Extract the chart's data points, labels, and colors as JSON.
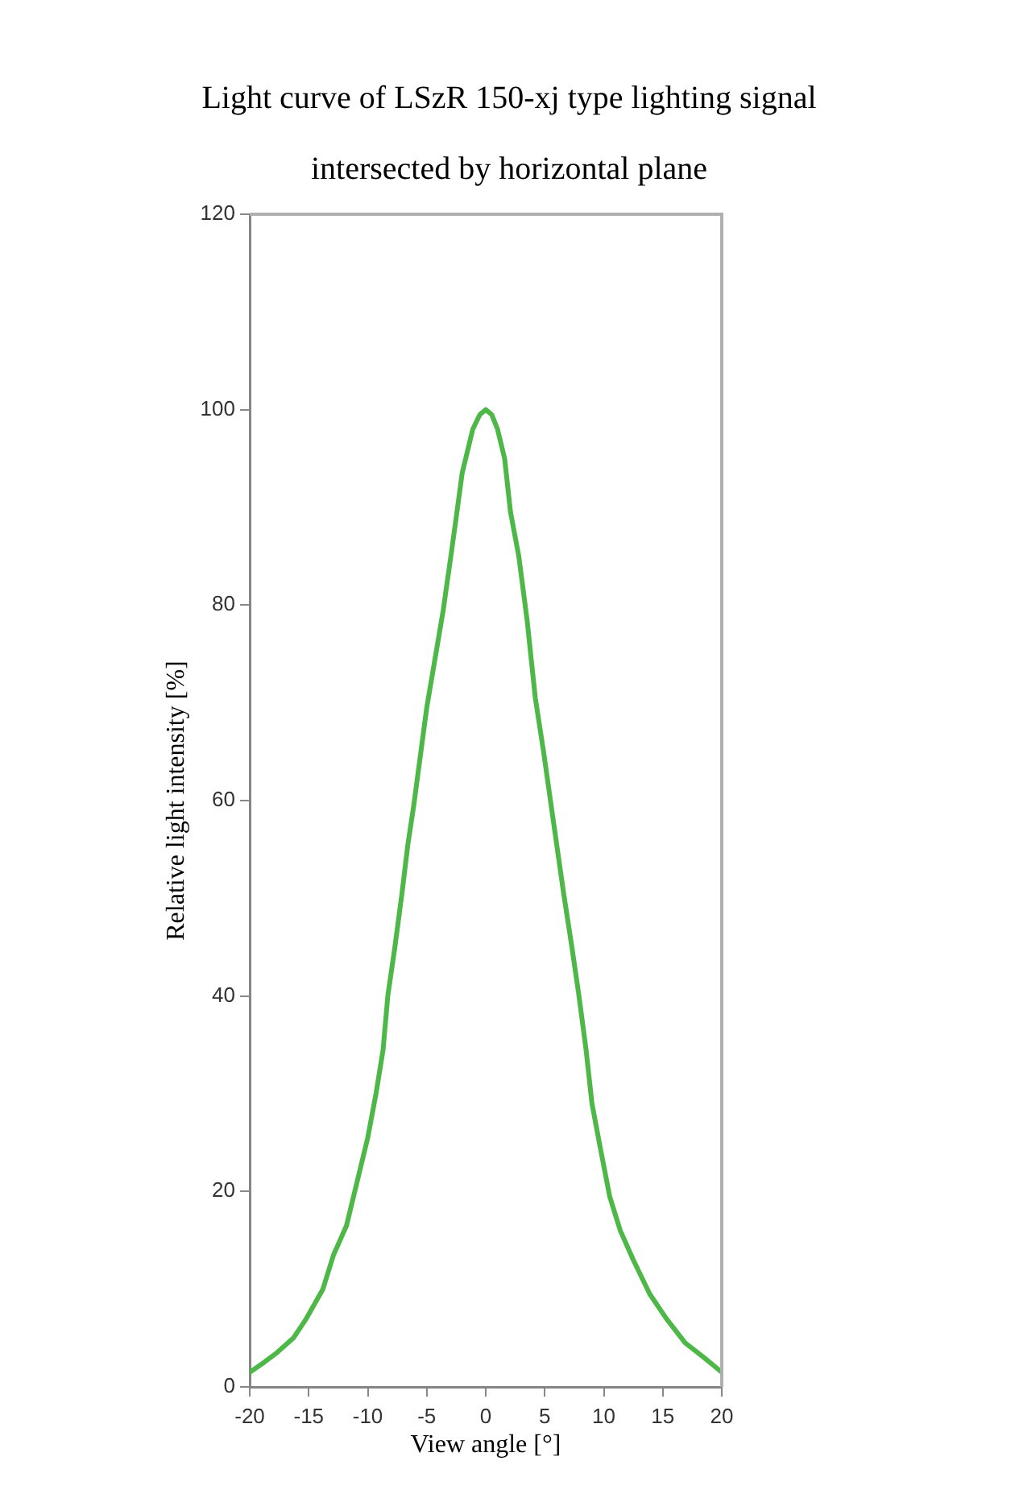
{
  "chart_data": {
    "type": "line",
    "title": "Light curve of LSzR 150-xj type lighting signal intersected by horizontal plane",
    "xlabel": "View angle [°]",
    "ylabel": "Relative light intensity [%]",
    "x": [
      -20,
      -18.8,
      -17.7,
      -16.3,
      -15.2,
      -13.8,
      -12.9,
      -11.8,
      -10.9,
      -10,
      -9.3,
      -8.7,
      -8.3,
      -7.7,
      -7.1,
      -6.6,
      -6.1,
      -5,
      -3.6,
      -2.9,
      -2.5,
      -2,
      -1.1,
      -0.5,
      0,
      0.5,
      1,
      1.6,
      2.1,
      2.8,
      3.5,
      4.2,
      4.9,
      5.6,
      6.6,
      7.3,
      7.9,
      8.5,
      9,
      9.7,
      10.5,
      11.4,
      12.5,
      13.9,
      15.3,
      16.9,
      18.5,
      20
    ],
    "series": [
      {
        "color": "#4db848",
        "values": [
          1.5,
          2.5,
          3.5,
          5,
          7,
          10,
          13.5,
          16.5,
          21,
          25.5,
          30,
          34.5,
          40,
          45,
          50.5,
          55.5,
          59.5,
          69.5,
          79.5,
          85.5,
          89,
          93.5,
          98,
          99.5,
          100,
          99.5,
          98,
          95,
          89.5,
          85,
          78.5,
          70.5,
          65,
          59,
          50.5,
          45,
          40,
          34.5,
          29,
          24.5,
          19.5,
          16,
          13,
          9.5,
          7,
          4.5,
          3,
          1.5
        ]
      }
    ],
    "xlim": [
      -20,
      20
    ],
    "ylim": [
      0,
      120
    ],
    "xticks": [
      -20,
      -15,
      -10,
      -5,
      0,
      5,
      10,
      15,
      20
    ],
    "yticks": [
      0,
      20,
      40,
      60,
      80,
      100,
      120
    ],
    "grid": false,
    "marker": "none",
    "line_style": "solid"
  }
}
